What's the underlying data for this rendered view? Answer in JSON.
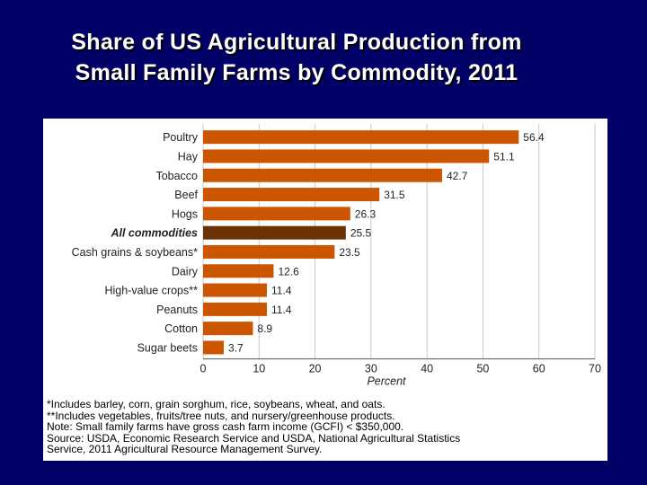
{
  "slide": {
    "title_line1": "Share of US Agricultural Production from",
    "title_line2": "Small Family Farms by Commodity, 2011"
  },
  "colors": {
    "background": "#000066",
    "bar": "#CC5500",
    "bar_highlight": "#6B3206",
    "grid": "#C8C8C8"
  },
  "chart_data": {
    "type": "bar",
    "orientation": "horizontal",
    "categories": [
      "Poultry",
      "Hay",
      "Tobacco",
      "Beef",
      "Hogs",
      "All commodities",
      "Cash grains & soybeans*",
      "Dairy",
      "High-value crops**",
      "Peanuts",
      "Cotton",
      "Sugar beets"
    ],
    "values": [
      56.4,
      51.1,
      42.7,
      31.5,
      26.3,
      25.5,
      23.5,
      12.6,
      11.4,
      11.4,
      8.9,
      3.7
    ],
    "value_labels": [
      "56.4",
      "51.1",
      "42.7",
      "31.5",
      "26.3",
      "25.5",
      "23.5",
      "12.6",
      "11.4",
      "11.4",
      "8.9",
      "3.7"
    ],
    "highlight": "All commodities",
    "xlabel": "Percent",
    "xlim": [
      0,
      70
    ],
    "xticks": [
      "0",
      "10",
      "20",
      "30",
      "40",
      "50",
      "60",
      "70"
    ],
    "grid": true
  },
  "notes": [
    "*Includes barley, corn, grain sorghum, rice, soybeans, wheat, and oats.",
    "**Includes vegetables, fruits/tree nuts, and nursery/greenhouse products.",
    "Note: Small family farms have gross cash farm income (GCFI) < $350,000.",
    "Source: USDA, Economic Research Service and USDA, National Agricultural Statistics",
    "Service, 2011 Agricultural Resource Management Survey."
  ]
}
